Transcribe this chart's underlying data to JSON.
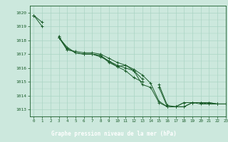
{
  "title": "Graphe pression niveau de la mer (hPa)",
  "bg_color": "#cce8dd",
  "grid_color": "#aad4c4",
  "line_color": "#1a5c2a",
  "title_bg": "#2d8050",
  "xlim": [
    -0.5,
    23
  ],
  "ylim": [
    1012.5,
    1020.5
  ],
  "yticks": [
    1013,
    1014,
    1015,
    1016,
    1017,
    1018,
    1019,
    1020
  ],
  "xticks": [
    0,
    1,
    2,
    3,
    4,
    5,
    6,
    7,
    8,
    9,
    10,
    11,
    12,
    13,
    14,
    15,
    16,
    17,
    18,
    19,
    20,
    21,
    22,
    23
  ],
  "series": [
    [
      1019.8,
      1019.3,
      null,
      1018.2,
      1017.4,
      1017.1,
      1017.0,
      1017.0,
      1016.9,
      1016.5,
      1016.1,
      1016.2,
      1015.8,
      1014.8,
      1014.6,
      1013.5,
      1013.2,
      1013.2,
      1013.5,
      1013.5,
      1013.4,
      1013.4,
      1013.4,
      1013.4
    ],
    [
      1019.8,
      1019.0,
      null,
      1018.3,
      1017.3,
      1017.2,
      1017.1,
      1017.1,
      1017.0,
      1016.7,
      1016.4,
      1016.2,
      1015.9,
      1015.5,
      1014.9,
      1013.6,
      1013.2,
      1013.2,
      1013.5,
      1013.5,
      1013.5,
      1013.4,
      1013.4,
      1013.4
    ],
    [
      1019.8,
      null,
      null,
      1018.2,
      1017.5,
      1017.1,
      1017.0,
      1017.0,
      1016.8,
      1016.5,
      1016.2,
      1016.0,
      1015.8,
      1015.2,
      null,
      1014.8,
      1013.3,
      1013.2,
      1013.2,
      1013.5,
      1013.5,
      1013.5,
      1013.4,
      1013.4
    ],
    [
      1019.8,
      null,
      null,
      1018.2,
      1017.3,
      null,
      1017.0,
      1017.0,
      1016.9,
      1016.4,
      1016.1,
      1015.8,
      1015.3,
      1015.0,
      null,
      1014.6,
      1013.2,
      1013.2,
      1013.2,
      1013.5,
      1013.5,
      1013.5,
      1013.4,
      1013.4
    ]
  ],
  "figsize": [
    3.2,
    2.0
  ],
  "dpi": 100
}
